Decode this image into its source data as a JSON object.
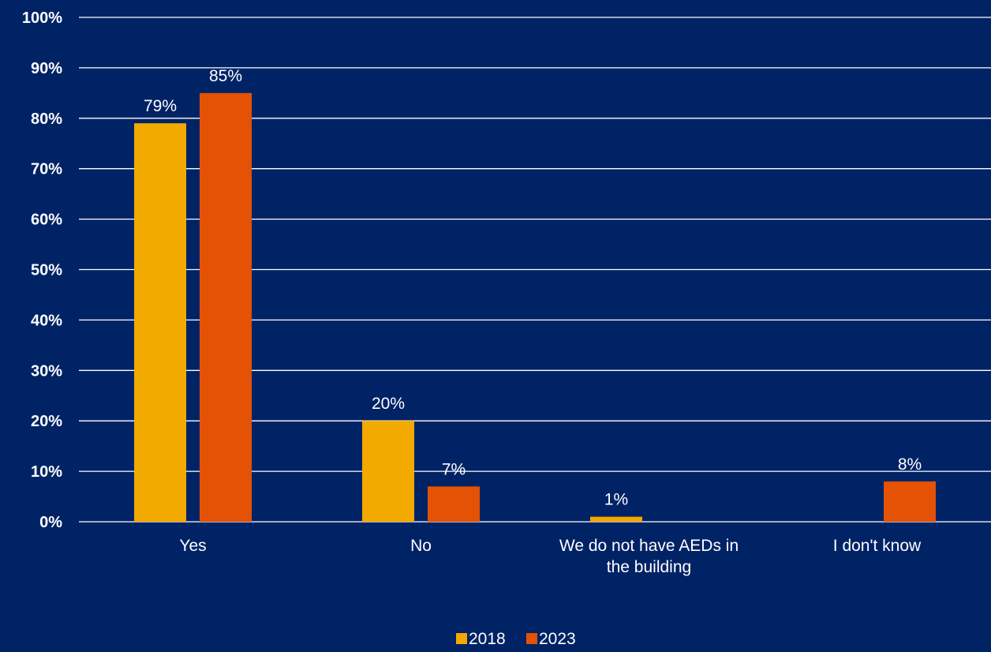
{
  "chart_data": {
    "type": "bar",
    "title": "",
    "xlabel": "",
    "ylabel": "",
    "categories": [
      [
        "Yes"
      ],
      [
        "No"
      ],
      [
        "We do not have AEDs in",
        "the building"
      ],
      [
        "I don't know"
      ]
    ],
    "series": [
      {
        "name": "2018",
        "color": "#F2A900",
        "values": [
          79,
          20,
          1,
          null
        ],
        "labels": [
          "79%",
          "20%",
          "1%",
          ""
        ]
      },
      {
        "name": "2023",
        "color": "#E35205",
        "values": [
          85,
          7,
          null,
          8
        ],
        "labels": [
          "85%",
          "7%",
          "",
          "8%"
        ]
      }
    ],
    "ylim": [
      0,
      100
    ],
    "yticks": [
      0,
      10,
      20,
      30,
      40,
      50,
      60,
      70,
      80,
      90,
      100
    ],
    "ytick_labels": [
      "0%",
      "10%",
      "20%",
      "30%",
      "40%",
      "50%",
      "60%",
      "70%",
      "80%",
      "90%",
      "100%"
    ],
    "grid": true,
    "legend_position": "bottom-center",
    "background_color": "#002366"
  }
}
